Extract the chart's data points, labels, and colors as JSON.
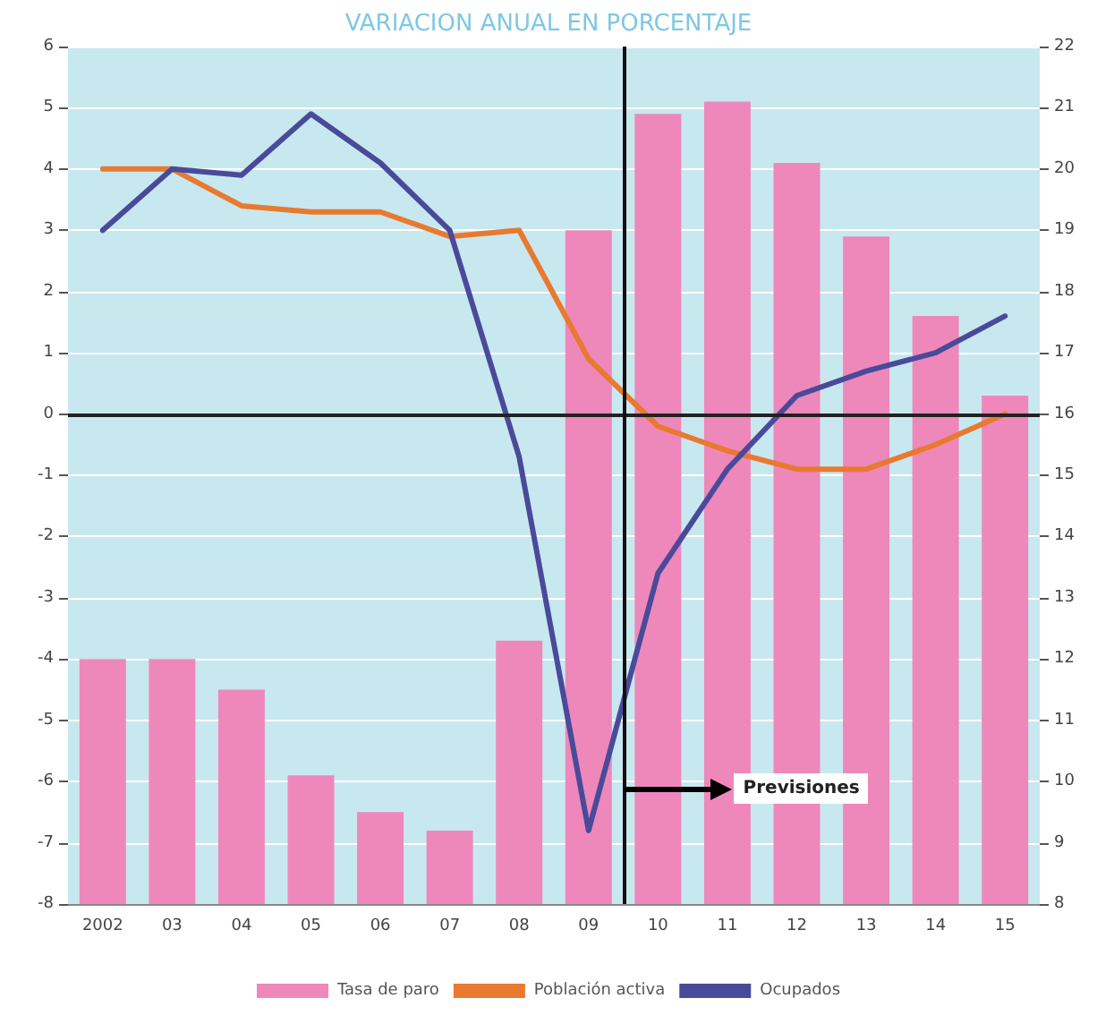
{
  "chart_data": {
    "type": "line",
    "title": "VARIACION ANUAL EN PORCENTAJE",
    "x": [
      2002,
      2003,
      2004,
      2005,
      2006,
      2007,
      2008,
      2009,
      2010,
      2011,
      2012,
      2013,
      2014,
      2015
    ],
    "xlim": [
      2001.5,
      2015.5
    ],
    "xticks": [
      {
        "value": 2002,
        "label": "2002"
      },
      {
        "value": 2003,
        "label": "03"
      },
      {
        "value": 2004,
        "label": "04"
      },
      {
        "value": 2005,
        "label": "05"
      },
      {
        "value": 2006,
        "label": "06"
      },
      {
        "value": 2007,
        "label": "07"
      },
      {
        "value": 2008,
        "label": "08"
      },
      {
        "value": 2009,
        "label": "09"
      },
      {
        "value": 2010,
        "label": "10"
      },
      {
        "value": 2011,
        "label": "11"
      },
      {
        "value": 2012,
        "label": "12"
      },
      {
        "value": 2013,
        "label": "13"
      },
      {
        "value": 2014,
        "label": "14"
      },
      {
        "value": 2015,
        "label": "15"
      }
    ],
    "ylim": [
      -8,
      6
    ],
    "yticks": [
      -8,
      -7,
      -6,
      -5,
      -4,
      -3,
      -2,
      -1,
      0,
      1,
      2,
      3,
      4,
      5,
      6
    ],
    "y2lim": [
      8,
      22
    ],
    "y2ticks": [
      8,
      9,
      10,
      11,
      12,
      13,
      14,
      15,
      16,
      17,
      18,
      19,
      20,
      21,
      22
    ],
    "series": [
      {
        "name": "Tasa de paro",
        "type": "bar",
        "axis": "y2",
        "color": "#ee88bb",
        "values": [
          12.0,
          12.0,
          11.5,
          10.1,
          9.5,
          9.2,
          12.3,
          19.0,
          20.9,
          21.1,
          20.1,
          18.9,
          17.6,
          16.3
        ]
      },
      {
        "name": "Población activa",
        "color": "#e87a30",
        "values": [
          4.0,
          4.0,
          3.4,
          3.3,
          3.3,
          2.9,
          3.0,
          0.9,
          -0.2,
          -0.6,
          -0.9,
          -0.9,
          -0.5,
          0.0
        ]
      },
      {
        "name": "Ocupados",
        "color": "#4a4a9a",
        "values": [
          3.0,
          4.0,
          3.9,
          4.9,
          4.1,
          3.0,
          -0.7,
          -6.8,
          -2.6,
          -0.9,
          0.3,
          0.7,
          1.0,
          1.6
        ]
      }
    ],
    "ref_lines": [
      {
        "axis": "y",
        "value": 0,
        "color": "#222222"
      },
      {
        "axis": "x",
        "value": 2009.5,
        "color": "#111111"
      }
    ],
    "annotations": [
      "Previsiones"
    ],
    "marker": "none",
    "line_style": "solid",
    "grid": "y",
    "legend": "bottom"
  }
}
